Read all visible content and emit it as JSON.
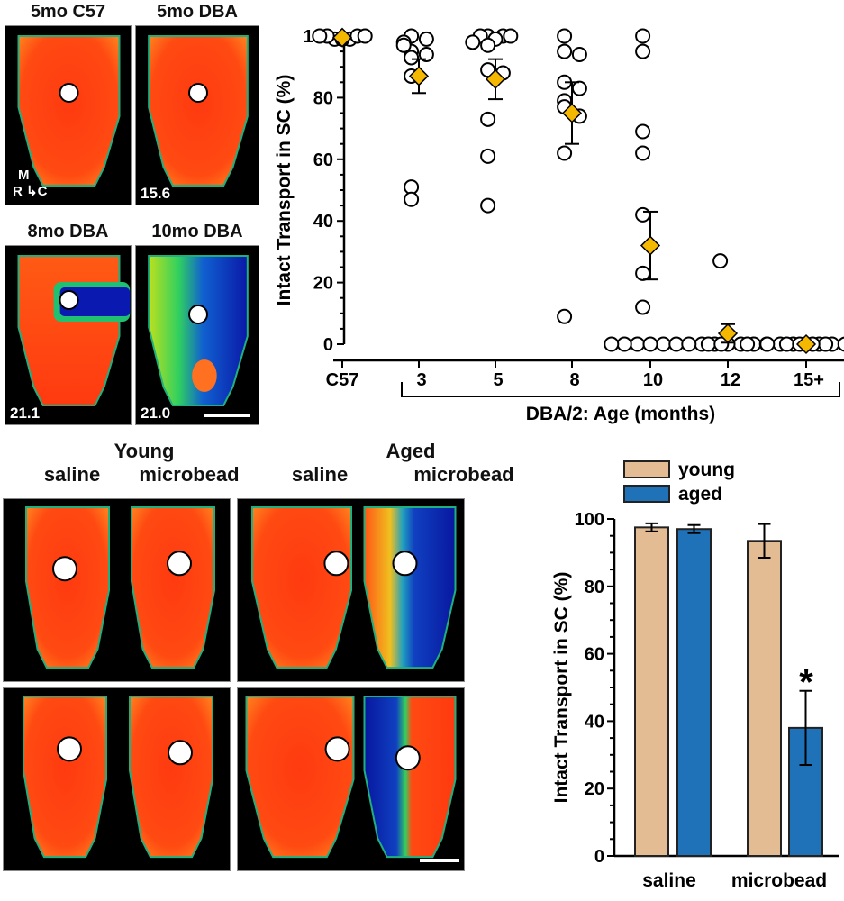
{
  "top_panels": [
    {
      "title": "5mo C57",
      "value_label": "",
      "heatmap": "intact"
    },
    {
      "title": "5mo DBA",
      "value_label": "15.6",
      "heatmap": "intact"
    },
    {
      "title": "8mo DBA",
      "value_label": "21.1",
      "heatmap": "partial"
    },
    {
      "title": "10mo DBA",
      "value_label": "21.0",
      "heatmap": "degraded"
    }
  ],
  "orientation": {
    "up": "M",
    "left": "R",
    "right": "C"
  },
  "bottom_panels": {
    "groups": [
      {
        "title": "Young",
        "columns": [
          "saline",
          "microbead"
        ]
      },
      {
        "title": "Aged",
        "columns": [
          "saline",
          "microbead"
        ]
      }
    ]
  },
  "chart_data": [
    {
      "type": "scatter",
      "title": "",
      "xlabel": "DBA/2: Age (months)",
      "ylabel": "Intact Transport in SC (%)",
      "ylim": [
        0,
        100
      ],
      "yticks": [
        0,
        20,
        40,
        60,
        80,
        100
      ],
      "categories": [
        "C57",
        "3",
        "5",
        "8",
        "10",
        "12",
        "15+"
      ],
      "bracket_label": "DBA/2: Age (months)",
      "bracket_span": [
        "3",
        "15+"
      ],
      "points": [
        [
          99,
          99,
          100,
          100,
          99,
          100,
          100
        ],
        [
          100,
          99,
          98,
          95,
          94,
          93,
          97,
          87,
          51,
          47
        ],
        [
          100,
          100,
          100,
          100,
          99,
          98,
          97,
          89,
          88,
          73,
          61,
          45
        ],
        [
          100,
          95,
          94,
          85,
          83,
          79,
          77,
          74,
          62,
          9
        ],
        [
          100,
          95,
          69,
          62,
          42,
          23,
          12,
          0,
          0,
          0,
          0,
          0,
          0
        ],
        [
          27,
          0,
          0,
          0,
          0,
          0,
          0,
          0,
          0,
          0,
          0
        ],
        [
          0,
          0,
          0,
          0,
          0,
          0,
          0,
          0,
          0,
          0,
          0
        ]
      ],
      "means": [
        99.5,
        87,
        86,
        75,
        32,
        3.5,
        0
      ],
      "sem": [
        0.3,
        5.5,
        6.5,
        10,
        11,
        3,
        0
      ],
      "colors": {
        "mean_marker": "#F5B800",
        "point_fill": "#ffffff",
        "point_stroke": "#000000"
      }
    },
    {
      "type": "bar",
      "title": "",
      "xlabel": "",
      "ylabel": "Intact Transport in SC (%)",
      "ylim": [
        0,
        100
      ],
      "yticks": [
        0,
        20,
        40,
        60,
        80,
        100
      ],
      "categories": [
        "saline",
        "microbead"
      ],
      "series": [
        {
          "name": "young",
          "color": "#E4BC94",
          "values": [
            97.5,
            93.5
          ],
          "errors": [
            1.2,
            5
          ]
        },
        {
          "name": "aged",
          "color": "#1F72B8",
          "values": [
            97,
            38
          ],
          "errors": [
            1.2,
            11
          ]
        }
      ],
      "legend": "top",
      "annotations": [
        {
          "text": "*",
          "category": "microbead",
          "series": "aged"
        }
      ]
    }
  ]
}
